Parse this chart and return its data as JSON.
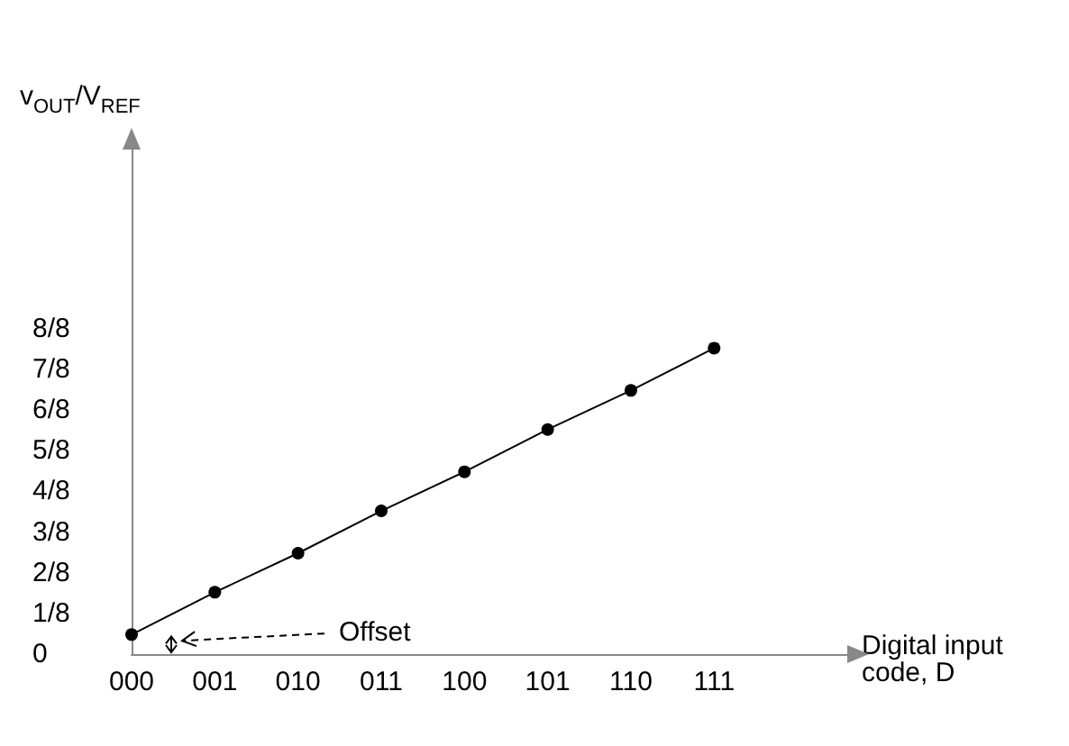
{
  "chart_data": {
    "type": "line",
    "categories": [
      "000",
      "001",
      "010",
      "011",
      "100",
      "101",
      "110",
      "111"
    ],
    "series": [
      {
        "color": "#000000",
        "values": [
          0.06,
          0.19,
          0.31,
          0.44,
          0.56,
          0.69,
          0.81,
          0.94
        ]
      }
    ],
    "ylabel": "v$_{OUT}$/V$_{REF}$",
    "xlabel": "Digital input\ncode, D",
    "ylim": [
      0,
      1.55
    ],
    "yticks": [
      0,
      {
        "value": 0.125,
        "label": "1/8"
      },
      {
        "value": 0.25,
        "label": "2/8"
      },
      {
        "value": 0.375,
        "label": "3/8"
      },
      {
        "value": 0.5,
        "label": "4/8"
      },
      {
        "value": 0.625,
        "label": "5/8"
      },
      {
        "value": 0.75,
        "label": "6/8"
      },
      {
        "value": 0.875,
        "label": "7/8"
      },
      {
        "value": 1,
        "label": "8/8"
      }
    ],
    "annotations": [
      "Offset"
    ],
    "marker": "circle",
    "line_style": "solid",
    "grid": false
  }
}
